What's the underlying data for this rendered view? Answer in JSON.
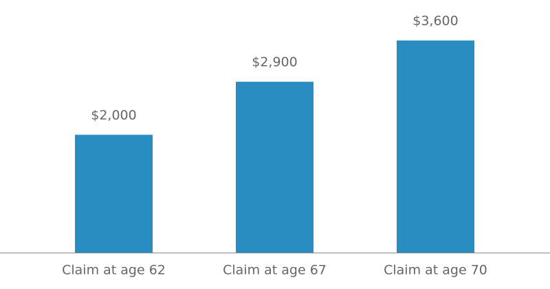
{
  "chart_data": {
    "type": "bar",
    "categories": [
      "Claim at age 62",
      "Claim at age 67",
      "Claim at age 70"
    ],
    "values": [
      2000,
      2900,
      3600
    ],
    "value_labels": [
      "$2,000",
      "$2,900",
      "$3,600"
    ],
    "color": "#2a8dc2"
  }
}
